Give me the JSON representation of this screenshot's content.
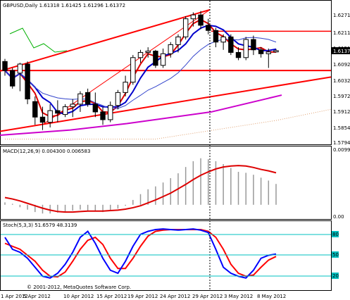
{
  "price_panel": {
    "title": "GBPUSD,Daily  1.61318 1.61425 1.61296 1.61372",
    "current_price": "1.61372",
    "price_labels": [
      "1.62710",
      "1.62110",
      "1.61510",
      "1.60920",
      "1.60320",
      "1.59725",
      "1.59125",
      "1.58540",
      "1.57940"
    ]
  },
  "macd_panel": {
    "title": "MACD(12,26,9) 0.004300 0.006583",
    "labels": [
      "0.009962",
      "0.00"
    ]
  },
  "stoch_panel": {
    "title": "Stoch(5,3,3) 51.6579 48.3139",
    "labels": [
      "80",
      "50",
      "20"
    ]
  },
  "date_axis": [
    "1 Apr 2012",
    "5 Apr 2012",
    "10 Apr 2012",
    "15 Apr 2012",
    "19 Apr 2012",
    "24 Apr 2012",
    "29 Apr 2012",
    "3 May 2012",
    "8 May 2012"
  ],
  "copyright": "© 2001-2012, MetaQuotes Software Corp.",
  "colors": {
    "trendline": "#ff0000",
    "ma_blue": "#0000cc",
    "ma_red": "#dd0000",
    "stoch_main": "#0000ff",
    "stoch_signal": "#ff0000",
    "level_cyan": "#00c0c0",
    "ichimoku_dotted": "#e0a070",
    "green_line": "#00b000"
  },
  "chart_data": {
    "type": "candlestick",
    "candles": [
      {
        "o": 1.6095,
        "h": 1.6105,
        "l": 1.604,
        "c": 1.606
      },
      {
        "o": 1.606,
        "h": 1.607,
        "l": 1.599,
        "c": 1.6
      },
      {
        "o": 1.605,
        "h": 1.609,
        "l": 1.598,
        "c": 1.6085
      },
      {
        "o": 1.6085,
        "h": 1.6095,
        "l": 1.593,
        "c": 1.595
      },
      {
        "o": 1.594,
        "h": 1.596,
        "l": 1.585,
        "c": 1.588
      },
      {
        "o": 1.588,
        "h": 1.592,
        "l": 1.583,
        "c": 1.586
      },
      {
        "o": 1.586,
        "h": 1.593,
        "l": 1.584,
        "c": 1.5905
      },
      {
        "o": 1.5905,
        "h": 1.5945,
        "l": 1.586,
        "c": 1.5895
      },
      {
        "o": 1.589,
        "h": 1.593,
        "l": 1.588,
        "c": 1.592
      },
      {
        "o": 1.592,
        "h": 1.595,
        "l": 1.588,
        "c": 1.593
      },
      {
        "o": 1.593,
        "h": 1.598,
        "l": 1.59,
        "c": 1.597
      },
      {
        "o": 1.5975,
        "h": 1.599,
        "l": 1.592,
        "c": 1.593
      },
      {
        "o": 1.593,
        "h": 1.5975,
        "l": 1.588,
        "c": 1.59
      },
      {
        "o": 1.59,
        "h": 1.592,
        "l": 1.585,
        "c": 1.587
      },
      {
        "o": 1.587,
        "h": 1.594,
        "l": 1.586,
        "c": 1.5925
      },
      {
        "o": 1.5925,
        "h": 1.5985,
        "l": 1.591,
        "c": 1.5975
      },
      {
        "o": 1.5975,
        "h": 1.604,
        "l": 1.596,
        "c": 1.6015
      },
      {
        "o": 1.6015,
        "h": 1.612,
        "l": 1.6005,
        "c": 1.611
      },
      {
        "o": 1.611,
        "h": 1.614,
        "l": 1.609,
        "c": 1.613
      },
      {
        "o": 1.613,
        "h": 1.615,
        "l": 1.611,
        "c": 1.6135
      },
      {
        "o": 1.6135,
        "h": 1.614,
        "l": 1.607,
        "c": 1.608
      },
      {
        "o": 1.608,
        "h": 1.6145,
        "l": 1.607,
        "c": 1.6125
      },
      {
        "o": 1.6125,
        "h": 1.617,
        "l": 1.611,
        "c": 1.616
      },
      {
        "o": 1.616,
        "h": 1.62,
        "l": 1.613,
        "c": 1.619
      },
      {
        "o": 1.619,
        "h": 1.627,
        "l": 1.618,
        "c": 1.626
      },
      {
        "o": 1.626,
        "h": 1.6285,
        "l": 1.623,
        "c": 1.6275
      },
      {
        "o": 1.6275,
        "h": 1.629,
        "l": 1.622,
        "c": 1.6235
      },
      {
        "o": 1.6235,
        "h": 1.626,
        "l": 1.62,
        "c": 1.6215
      },
      {
        "o": 1.6215,
        "h": 1.6225,
        "l": 1.615,
        "c": 1.617
      },
      {
        "o": 1.617,
        "h": 1.62,
        "l": 1.614,
        "c": 1.619
      },
      {
        "o": 1.619,
        "h": 1.62,
        "l": 1.612,
        "c": 1.613
      },
      {
        "o": 1.613,
        "h": 1.615,
        "l": 1.61,
        "c": 1.611
      },
      {
        "o": 1.611,
        "h": 1.619,
        "l": 1.61,
        "c": 1.618
      },
      {
        "o": 1.618,
        "h": 1.6195,
        "l": 1.612,
        "c": 1.614
      },
      {
        "o": 1.614,
        "h": 1.615,
        "l": 1.611,
        "c": 1.6125
      },
      {
        "o": 1.6125,
        "h": 1.6145,
        "l": 1.607,
        "c": 1.6132
      },
      {
        "o": 1.6132,
        "h": 1.6143,
        "l": 1.613,
        "c": 1.6137
      }
    ],
    "ylim": [
      1.578,
      1.63
    ],
    "macd_histogram": [
      0.0005,
      0.0002,
      -0.0005,
      -0.001,
      -0.0015,
      -0.0018,
      -0.0018,
      -0.0016,
      -0.0014,
      -0.0012,
      -0.001,
      -0.0012,
      -0.0014,
      -0.0015,
      -0.0012,
      -0.0008,
      -0.0002,
      0.001,
      0.0022,
      0.0032,
      0.0038,
      0.0046,
      0.0055,
      0.0065,
      0.0078,
      0.009,
      0.0096,
      0.0094,
      0.009,
      0.0084,
      0.0076,
      0.0068,
      0.0066,
      0.0062,
      0.0056,
      0.005,
      0.0043
    ],
    "macd_signal": [
      0.0015,
      0.0012,
      0.0008,
      0.0003,
      -0.0002,
      -0.0007,
      -0.0011,
      -0.0014,
      -0.0015,
      -0.0015,
      -0.0014,
      -0.0013,
      -0.0013,
      -0.0013,
      -0.0012,
      -0.0011,
      -0.0009,
      -0.0006,
      -0.0002,
      0.0004,
      0.001,
      0.0017,
      0.0024,
      0.0033,
      0.0042,
      0.0052,
      0.0061,
      0.0068,
      0.0074,
      0.0078,
      0.008,
      0.0081,
      0.008,
      0.0077,
      0.0073,
      0.007,
      0.0066
    ],
    "macd_ylim": [
      -0.0025,
      0.01
    ],
    "stoch_main": [
      80,
      60,
      55,
      45,
      30,
      15,
      12,
      20,
      35,
      55,
      80,
      90,
      70,
      45,
      25,
      20,
      40,
      65,
      85,
      90,
      93,
      94,
      93,
      92,
      93,
      94,
      92,
      88,
      60,
      30,
      20,
      15,
      12,
      25,
      45,
      50,
      52
    ],
    "stoch_signal": [
      70,
      65,
      60,
      50,
      40,
      25,
      15,
      14,
      22,
      40,
      60,
      75,
      80,
      68,
      45,
      28,
      28,
      45,
      65,
      82,
      90,
      92,
      93,
      93,
      93,
      93,
      93,
      90,
      80,
      60,
      35,
      20,
      15,
      17,
      30,
      42,
      48
    ]
  }
}
